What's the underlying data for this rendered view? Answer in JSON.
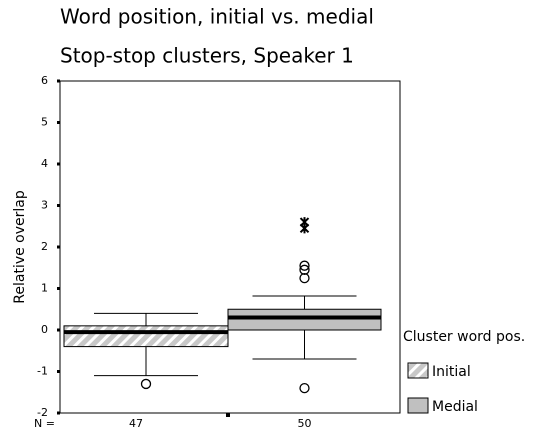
{
  "chart_data": {
    "type": "box",
    "title": "Word position, initial vs. medial",
    "subtitle": "Stop-stop clusters, Speaker 1",
    "y_label": "Relative overlap",
    "legend_title": "Cluster word pos.",
    "n_label": "N =",
    "ylim": [
      -2,
      6
    ],
    "yticks": [
      -2,
      -1,
      0,
      1,
      2,
      3,
      4,
      5,
      6
    ],
    "series": [
      {
        "name": "Initial",
        "color": "#c8c8c8",
        "hatched": true,
        "n": 47,
        "whisker_low": -1.1,
        "q1": -0.4,
        "median": -0.05,
        "q3": 0.1,
        "whisker_high": 0.4,
        "outliers": [
          -1.3
        ],
        "extremes": []
      },
      {
        "name": "Medial",
        "color": "#c0c0c0",
        "hatched": false,
        "n": 50,
        "whisker_low": -0.7,
        "q1": 0,
        "median": 0.3,
        "q3": 0.5,
        "whisker_high": 0.82,
        "outliers": [
          1.55,
          1.45,
          1.25,
          -1.4
        ],
        "extremes": [
          2.6,
          2.45
        ]
      }
    ]
  }
}
